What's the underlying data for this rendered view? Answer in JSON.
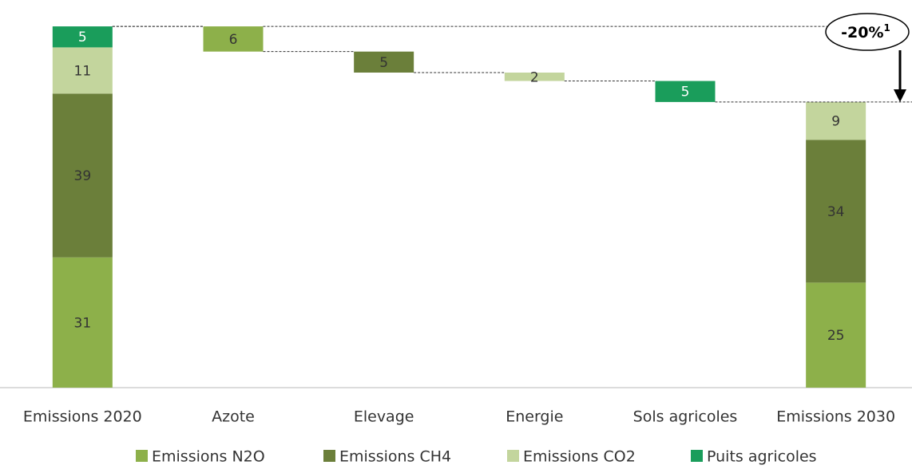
{
  "chart_data": {
    "type": "waterfall",
    "categories": [
      "Emissions 2020",
      "Azote",
      "Elevage",
      "Energie",
      "Sols agricoles",
      "Emissions 2030"
    ],
    "series": [
      {
        "name": "Emissions N2O",
        "color": "#8db04a",
        "values": [
          31,
          6,
          null,
          null,
          null,
          25
        ]
      },
      {
        "name": "Emissions CH4",
        "color": "#6b7f3a",
        "values": [
          39,
          null,
          5,
          null,
          null,
          34
        ]
      },
      {
        "name": "Emissions CO2",
        "color": "#c3d59d",
        "values": [
          11,
          null,
          null,
          2,
          null,
          9
        ]
      },
      {
        "name": "Puits agricoles",
        "color": "#1a9d5b",
        "values": [
          5,
          null,
          null,
          null,
          5,
          null
        ]
      }
    ],
    "ylim": [
      0,
      90
    ],
    "annotation": "-20%",
    "annotation_note": "1"
  }
}
